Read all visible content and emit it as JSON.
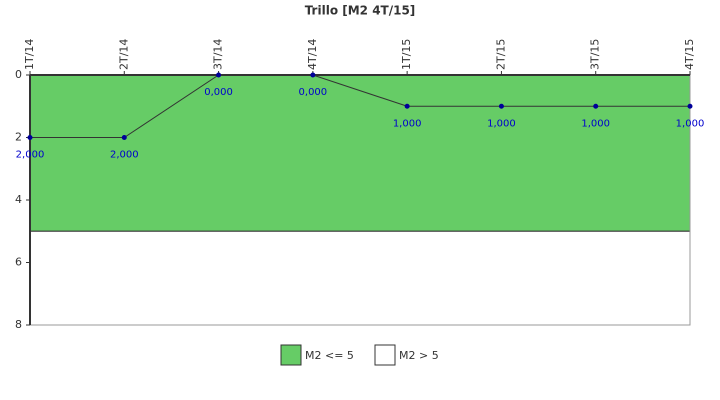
{
  "chart_data": {
    "type": "line",
    "title": "Trillo [M2 4T/15]",
    "categories": [
      "1T/14",
      "2T/14",
      "3T/14",
      "4T/14",
      "1T/15",
      "2T/15",
      "3T/15",
      "4T/15"
    ],
    "series": [
      {
        "name": "M2",
        "color": "#333333",
        "marker_color": "#000099",
        "values": [
          2,
          2,
          0,
          0,
          1,
          1,
          1,
          1
        ],
        "value_labels": [
          "2,000",
          "2,000",
          "0,000",
          "0,000",
          "1,000",
          "1,000",
          "1,000",
          "1,000"
        ]
      }
    ],
    "bands": [
      {
        "name": "M2 <= 5",
        "color": "#66cc66",
        "from": 0,
        "to": 5
      },
      {
        "name": "M2 > 5",
        "color": "#ffffff",
        "from": 5,
        "to": 8
      }
    ],
    "ylim": [
      8,
      0
    ],
    "yticks": [
      0,
      2,
      4,
      6,
      8
    ]
  }
}
